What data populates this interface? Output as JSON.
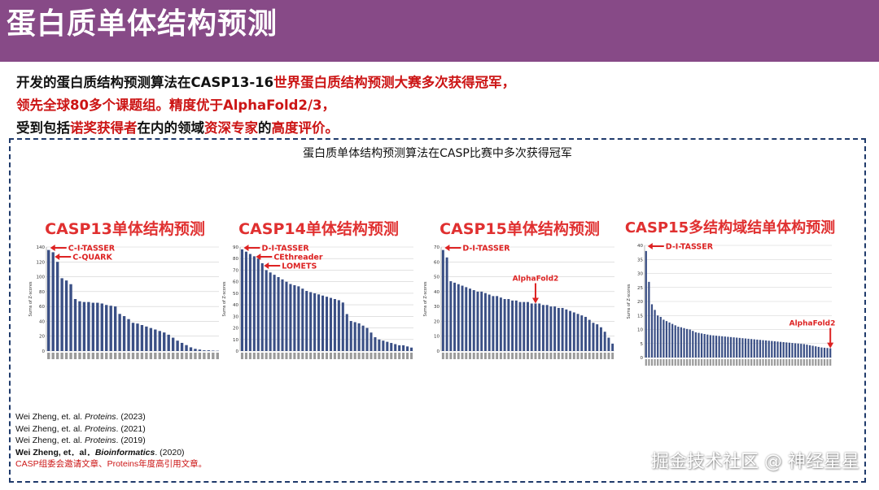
{
  "header": {
    "title": "蛋白质单体结构预测"
  },
  "intro": {
    "line1_a": "开发的蛋白质结构预测算法在CASP13-16",
    "line1_b": "世界蛋白质结构预测大赛多次获得冠军，",
    "line2": "领先全球80多个课题组。精度优于AlphaFold2/3，",
    "line3_a": "受到包括",
    "line3_b": "诺奖获得者",
    "line3_c": "在内的领域",
    "line3_d": "资深专家",
    "line3_e": "的",
    "line3_f": "高度评价。"
  },
  "frame": {
    "title": "蛋白质单体结构预测算法在CASP比赛中多次获得冠军"
  },
  "colors": {
    "bar": "#3a4f85",
    "arrow": "#dd2222",
    "title_red": "#e03030",
    "header": "#874a87"
  },
  "panels": [
    {
      "title": "CASP13单体结构预测",
      "ylabel": "Sums of Z-scores",
      "yticks": [
        "140",
        "120",
        "100",
        "80",
        "60",
        "40",
        "20",
        "0"
      ],
      "ymax": 140,
      "labels": [
        {
          "text": "C-I-TASSER",
          "bar": 0
        },
        {
          "text": "C-QUARK",
          "bar": 1
        }
      ],
      "values": [
        136,
        133,
        120,
        98,
        95,
        90,
        70,
        67,
        66,
        66,
        65,
        65,
        64,
        62,
        61,
        60,
        50,
        47,
        43,
        38,
        37,
        35,
        33,
        31,
        29,
        27,
        25,
        22,
        18,
        14,
        11,
        8,
        5,
        3,
        2,
        1,
        1,
        0.6,
        0.4
      ]
    },
    {
      "title": "CASP14单体结构预测",
      "ylabel": "Sums of Z-scores",
      "yticks": [
        "90",
        "80",
        "70",
        "60",
        "50",
        "40",
        "30",
        "20",
        "10",
        "0"
      ],
      "ymax": 90,
      "labels": [
        {
          "text": "D-I-TASSER",
          "bar": 0
        },
        {
          "text": "CEthreader",
          "bar": 3
        },
        {
          "text": "LOMETS",
          "bar": 5
        }
      ],
      "values": [
        88,
        86,
        84,
        82,
        80,
        76,
        70,
        68,
        66,
        64,
        62,
        60,
        58,
        57,
        56,
        54,
        52,
        51,
        50,
        49,
        48,
        47,
        46,
        45,
        44,
        42,
        32,
        26,
        25,
        24,
        22,
        20,
        16,
        12,
        10,
        9,
        8,
        7,
        6,
        5,
        5,
        4,
        3
      ]
    },
    {
      "title": "CASP15单体结构预测",
      "ylabel": "Sums of Z-scores",
      "yticks": [
        "70",
        "60",
        "50",
        "40",
        "30",
        "20",
        "10",
        "0"
      ],
      "ymax": 70,
      "labels": [
        {
          "text": "D-I-TASSER",
          "bar": 0
        },
        {
          "text": "AlphaFold2",
          "bar": 24,
          "arrow": "down"
        }
      ],
      "values": [
        68,
        63,
        47,
        46,
        45,
        44,
        43,
        42,
        41,
        40,
        40,
        39,
        38,
        37,
        37,
        36,
        35,
        35,
        34,
        34,
        33,
        33,
        33,
        32,
        32,
        32,
        31,
        31,
        30,
        30,
        29,
        29,
        28,
        27,
        26,
        25,
        24,
        23,
        21,
        19,
        18,
        16,
        13,
        9,
        5
      ]
    },
    {
      "title": "CASP15多结构域结单体构预测",
      "ylabel": "Sums of Z-scores",
      "yticks": [
        "40",
        "35",
        "30",
        "25",
        "20",
        "15",
        "10",
        "5",
        "0"
      ],
      "ymax": 40,
      "labels": [
        {
          "text": "D-I-TASSER",
          "bar": 0
        },
        {
          "text": "AlphaFold2",
          "bar": 63,
          "arrow": "down"
        }
      ],
      "values": [
        38,
        27,
        19,
        17,
        15,
        14.5,
        13.5,
        13,
        12.5,
        12,
        11.5,
        11,
        10.8,
        10.5,
        10.2,
        10,
        9.5,
        9,
        8.8,
        8.6,
        8.4,
        8.2,
        8,
        7.9,
        7.8,
        7.7,
        7.6,
        7.5,
        7.4,
        7.3,
        7.2,
        7.1,
        7,
        6.9,
        6.8,
        6.7,
        6.6,
        6.5,
        6.4,
        6.3,
        6.2,
        6.1,
        6,
        5.9,
        5.8,
        5.7,
        5.6,
        5.5,
        5.4,
        5.3,
        5.2,
        5.1,
        5,
        4.9,
        4.8,
        4.6,
        4.4,
        4.2,
        4,
        3.8,
        3.6,
        3.5,
        3.4,
        3.3
      ]
    }
  ],
  "refs": [
    {
      "a": "Wei Zheng, et. al. ",
      "i": "Proteins",
      "b": ". (2023)"
    },
    {
      "a": "Wei Zheng, et. al. ",
      "i": "Proteins",
      "b": ". (2021)"
    },
    {
      "a": "Wei Zheng, et. al. ",
      "i": "Proteins",
      "b": ". (2019)"
    },
    {
      "a": "Wei Zheng, et．al．",
      "i": "Bioinformatics",
      "b": ". (2020)"
    }
  ],
  "refs_note": "CASP组委会邀请文章、Proteins年度高引用文章。",
  "watermark": "掘金技术社区 @ 神经星星"
}
